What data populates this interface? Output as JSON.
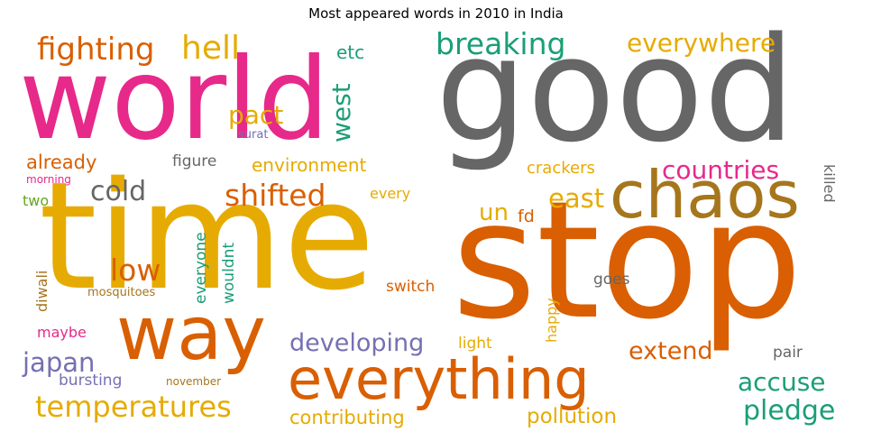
{
  "title": "Most appeared words in 2010 in India",
  "colors": {
    "pink": "#e7298a",
    "gray": "#666666",
    "gold": "#e6ab02",
    "orange": "#d95f02",
    "teal": "#1b9e77",
    "purple": "#7570b3",
    "olive": "#a6761d",
    "green": "#66a61e"
  },
  "words": {
    "world": "world",
    "good": "good",
    "time": "time",
    "stop": "stop",
    "chaos": "chaos",
    "way": "way",
    "everything": "everything",
    "fighting": "fighting",
    "hell": "hell",
    "breaking": "breaking",
    "everywhere": "everywhere",
    "etc": "etc",
    "west": "west",
    "pact": "pact",
    "surat": "surat",
    "already": "already",
    "figure": "figure",
    "environment": "environment",
    "crackers": "crackers",
    "countries": "countries",
    "morning": "morning",
    "cold": "cold",
    "shifted": "shifted",
    "every": "every",
    "east": "east",
    "two": "two",
    "un": "un",
    "fd": "fd",
    "killed": "killed",
    "low": "low",
    "diwali": "diwali",
    "everyone": "everyone",
    "wouldnt": "wouldnt",
    "mosquitoes": "mosquitoes",
    "switch": "switch",
    "happy": "happy",
    "goes": "goes",
    "maybe": "maybe",
    "developing": "developing",
    "light": "light",
    "extend": "extend",
    "pair": "pair",
    "japan": "japan",
    "accuse": "accuse",
    "bursting": "bursting",
    "november": "november",
    "temperatures": "temperatures",
    "contributing": "contributing",
    "pollution": "pollution",
    "pledge": "pledge"
  }
}
